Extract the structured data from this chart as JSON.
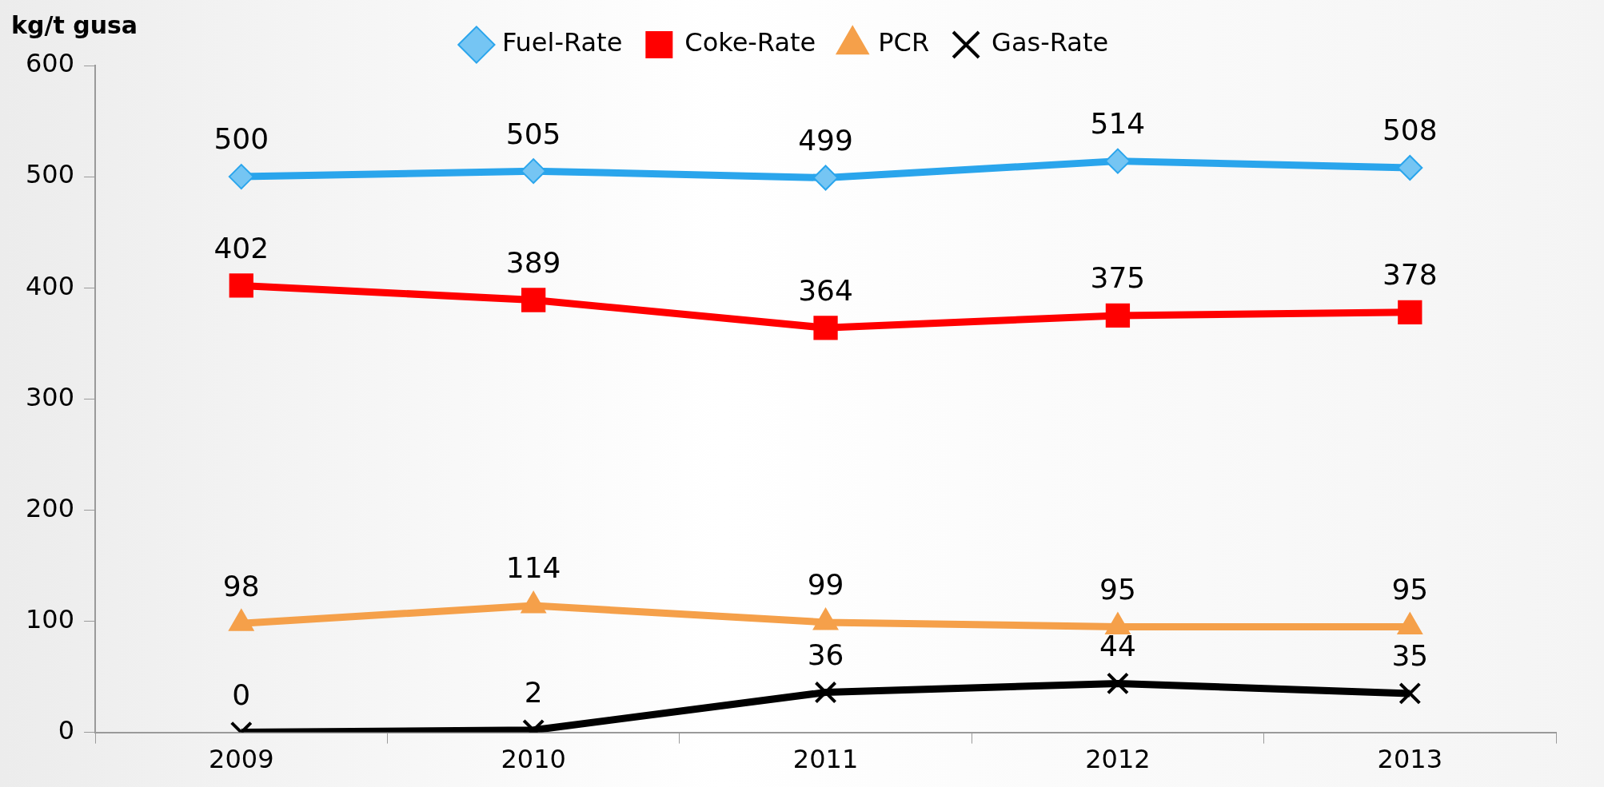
{
  "chart_data": {
    "type": "line",
    "ylabel": "kg/t gusa",
    "categories": [
      "2009",
      "2010",
      "2011",
      "2012",
      "2013"
    ],
    "series": [
      {
        "name": "Fuel-Rate",
        "color": "#2aa5ec",
        "marker": "diamond",
        "values": [
          500,
          505,
          499,
          514,
          508
        ]
      },
      {
        "name": "Coke-Rate",
        "color": "#ff0000",
        "marker": "square",
        "values": [
          402,
          389,
          364,
          375,
          378
        ]
      },
      {
        "name": "PCR",
        "color": "#f5a04a",
        "marker": "triangle",
        "values": [
          98,
          114,
          99,
          95,
          95
        ]
      },
      {
        "name": "Gas-Rate",
        "color": "#000000",
        "marker": "cross",
        "values": [
          0,
          2,
          36,
          44,
          35
        ]
      }
    ],
    "ylim": [
      0,
      600
    ],
    "yticks": [
      0,
      100,
      200,
      300,
      400,
      500,
      600
    ],
    "grid": false,
    "legend": "top",
    "data_labels": true,
    "line_style": "solid"
  }
}
